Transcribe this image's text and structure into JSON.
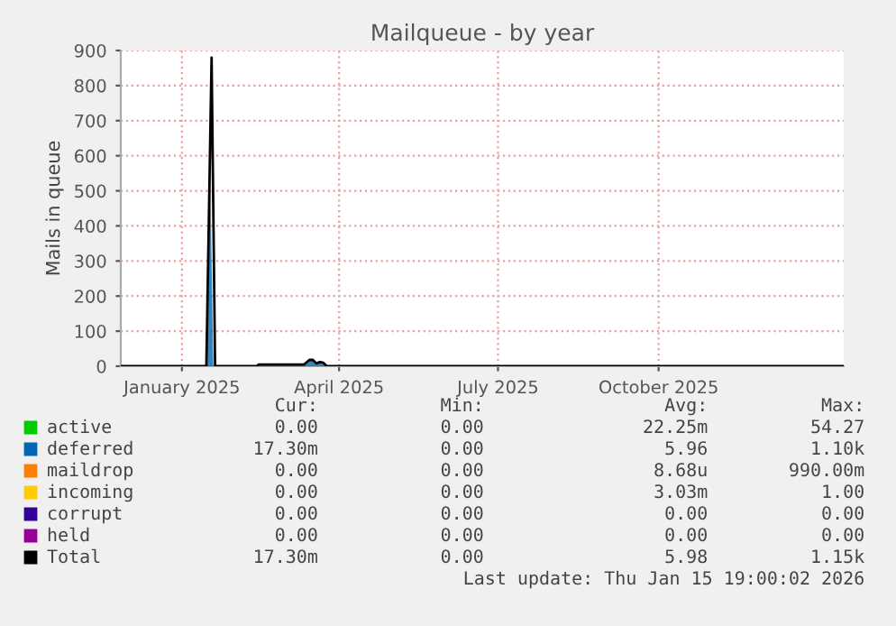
{
  "chart_data": {
    "type": "line",
    "title": "Mailqueue - by year",
    "ylabel": "Mails in queue",
    "xlim": [
      "2024-11-27",
      "2026-01-15"
    ],
    "ylim": [
      0,
      900
    ],
    "yticks": [
      0,
      100,
      200,
      300,
      400,
      500,
      600,
      700,
      800,
      900
    ],
    "xticks": [
      {
        "value": "2025-01-01",
        "label": "January 2025"
      },
      {
        "value": "2025-04-01",
        "label": "April 2025"
      },
      {
        "value": "2025-07-01",
        "label": "July 2025"
      },
      {
        "value": "2025-10-01",
        "label": "October 2025"
      }
    ],
    "grid": true,
    "legend": "bottom",
    "series": [
      {
        "name": "active",
        "color": "#00cc00"
      },
      {
        "name": "deferred",
        "color": "#0066b3",
        "type": "area",
        "x": [
          "2024-11-27",
          "2025-01-15",
          "2025-01-17",
          "2025-01-19",
          "2025-02-13",
          "2025-02-14",
          "2025-03-12",
          "2025-03-15",
          "2025-03-17",
          "2025-03-19",
          "2025-03-21",
          "2025-03-23",
          "2025-03-25",
          "2026-01-15"
        ],
        "values": [
          0,
          0,
          600,
          0,
          0,
          5,
          5,
          18,
          18,
          8,
          12,
          10,
          0,
          0
        ]
      },
      {
        "name": "maildrop",
        "color": "#ff8000"
      },
      {
        "name": "incoming",
        "color": "#ffcc00"
      },
      {
        "name": "corrupt",
        "color": "#330099"
      },
      {
        "name": "held",
        "color": "#990099"
      },
      {
        "name": "Total",
        "color": "#000000",
        "x": [
          "2024-11-27",
          "2025-01-15",
          "2025-01-18",
          "2025-01-20",
          "2025-02-13",
          "2025-02-14",
          "2025-03-12",
          "2025-03-15",
          "2025-03-17",
          "2025-03-19",
          "2025-03-21",
          "2025-03-23",
          "2025-03-25",
          "2026-01-15"
        ],
        "values": [
          0,
          0,
          880,
          0,
          0,
          5,
          5,
          18,
          18,
          8,
          12,
          10,
          0,
          0
        ]
      }
    ],
    "annotations": [
      "Cur:",
      "Min:",
      "Avg:",
      "Max:",
      "0.00",
      "0.00",
      "22.25m",
      "54.27",
      "17.30m",
      "0.00",
      "5.96",
      "1.10k",
      "0.00",
      "0.00",
      "8.68u",
      "990.00m",
      "0.00",
      "0.00",
      "3.03m",
      "1.00",
      "0.00",
      "0.00",
      "0.00",
      "0.00",
      "0.00",
      "0.00",
      "0.00",
      "0.00",
      "17.30m",
      "0.00",
      "5.98",
      "1.15k",
      "Last update: Thu Jan 15 19:00:02 2026"
    ]
  }
}
